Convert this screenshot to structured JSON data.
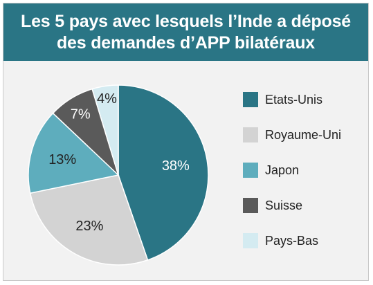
{
  "header": {
    "title_line1": "Les 5 pays avec lesquels l’Inde a déposé",
    "title_line2": "des demandes d’APP bilatéraux"
  },
  "chart_data": {
    "type": "pie",
    "title": "Les 5 pays avec lesquels l’Inde a déposé des demandes d’APP bilatéraux",
    "legend_position": "right",
    "slices": [
      {
        "label": "Etats-Unis",
        "value": 38,
        "display": "38%",
        "color": "#2a7585",
        "text_color": "#ffffff"
      },
      {
        "label": "Royaume-Uni",
        "value": 23,
        "display": "23%",
        "color": "#d3d3d3",
        "text_color": "#222222"
      },
      {
        "label": "Japon",
        "value": 13,
        "display": "13%",
        "color": "#5eadbd",
        "text_color": "#222222"
      },
      {
        "label": "Suisse",
        "value": 7,
        "display": "7%",
        "color": "#5a5a5a",
        "text_color": "#ffffff"
      },
      {
        "label": "Pays-Bas",
        "value": 4,
        "display": "4%",
        "color": "#d4ebf1",
        "text_color": "#222222"
      }
    ]
  }
}
